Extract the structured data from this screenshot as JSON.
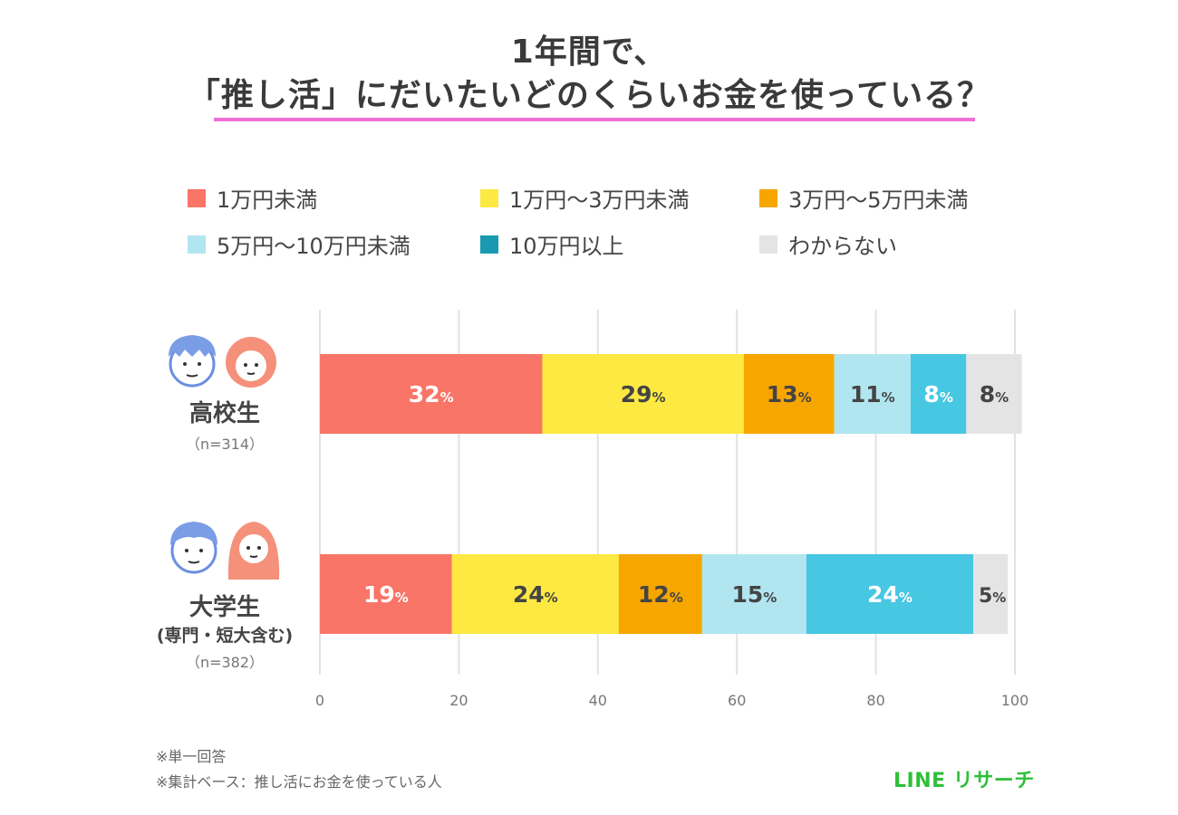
{
  "title_line1": "1年間で、",
  "title_line2": "「推し活」にだいたいどのくらいお金を使っている？",
  "notes": [
    "※単一回答",
    "※集計ベース：推し活にお金を使っている人"
  ],
  "brand": "LINE リサーチ",
  "groups": [
    {
      "name": "高校生",
      "sub": "",
      "n": "（n=314）"
    },
    {
      "name": "大学生",
      "sub": "(専門・短大含む)",
      "n": "（n=382）"
    }
  ],
  "chart_data": {
    "type": "stacked-bar-horizontal",
    "title": "1年間で、「推し活」にだいたいどのくらいお金を使っている？",
    "categories": [
      "高校生",
      "大学生"
    ],
    "xlim": [
      0,
      100
    ],
    "xticks": [
      "0",
      "20",
      "40",
      "60",
      "80",
      "100"
    ],
    "percent_suffix": "%",
    "series": [
      {
        "name": "1万円未満",
        "color": "#f87567",
        "label_color": "#ffffff",
        "values": [
          32,
          19
        ]
      },
      {
        "name": "1万円～3万円未満",
        "color": "#fde941",
        "label_color": "#444444",
        "values": [
          29,
          24
        ]
      },
      {
        "name": "3万円～5万円未満",
        "color": "#f7a600",
        "label_color": "#444444",
        "values": [
          13,
          12
        ]
      },
      {
        "name": "5万円～10万円未満",
        "color": "#b1e6f1",
        "label_color": "#444444",
        "values": [
          11,
          15
        ]
      },
      {
        "name": "10万円以上",
        "color": "#47c7e2",
        "label_color": "#ffffff",
        "values": [
          8,
          24
        ]
      },
      {
        "name": "わからない",
        "color": "#e4e4e4",
        "label_color": "#444444",
        "values": [
          8,
          5
        ]
      }
    ]
  }
}
